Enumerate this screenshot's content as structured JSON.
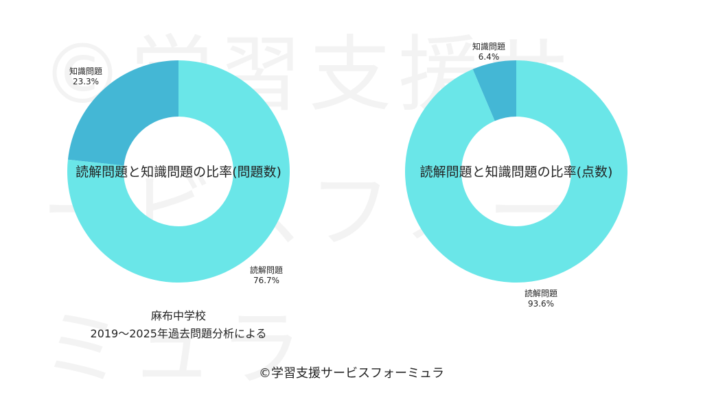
{
  "watermark_text": "©学習支援サービスフォーミュラ",
  "caption": {
    "line1": "麻布中学校",
    "line2": "2019〜2025年過去問題分析による"
  },
  "credit": "©学習支援サービスフォーミュラ",
  "colors": {
    "reading": "#6ae6e8",
    "knowledge": "#44b7d5"
  },
  "chart_data": [
    {
      "type": "pie",
      "title": "読解問題と知識問題の比率(問題数)",
      "slices": [
        {
          "label": "知識問題",
          "value": 23.3,
          "display": "23.3%",
          "color": "#44b7d5"
        },
        {
          "label": "読解問題",
          "value": 76.7,
          "display": "76.7%",
          "color": "#6ae6e8"
        }
      ]
    },
    {
      "type": "pie",
      "title": "読解問題と知識問題の比率(点数)",
      "slices": [
        {
          "label": "知識問題",
          "value": 6.4,
          "display": "6.4%",
          "color": "#44b7d5"
        },
        {
          "label": "読解問題",
          "value": 93.6,
          "display": "93.6%",
          "color": "#6ae6e8"
        }
      ]
    }
  ]
}
